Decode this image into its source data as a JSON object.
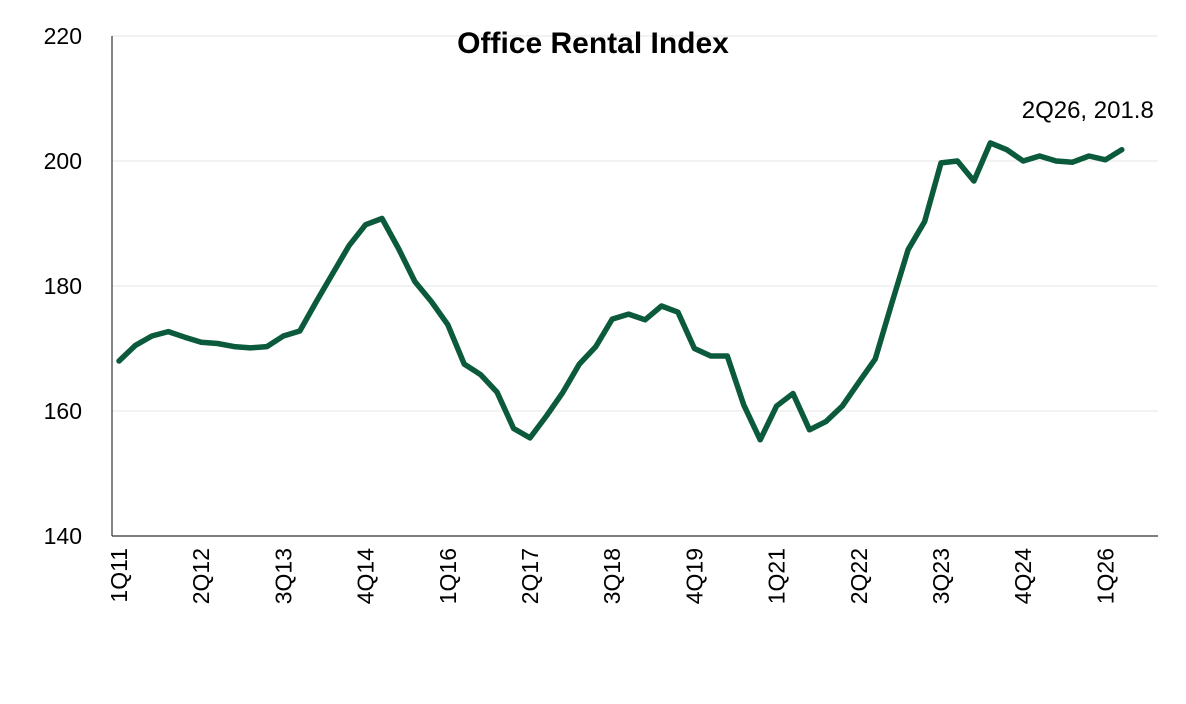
{
  "chart_data": {
    "type": "line",
    "title": "Office Rental Index",
    "xlabel": "",
    "ylabel": "",
    "ylim": [
      140,
      220
    ],
    "yticks": [
      140,
      160,
      180,
      200,
      220
    ],
    "grid": true,
    "legend": "none",
    "line_color": "#0b5a3b",
    "x": [
      "1Q11",
      "2Q11",
      "3Q11",
      "4Q11",
      "1Q12",
      "2Q12",
      "3Q12",
      "4Q12",
      "1Q13",
      "2Q13",
      "3Q13",
      "4Q13",
      "1Q14",
      "2Q14",
      "3Q14",
      "4Q14",
      "1Q15",
      "2Q15",
      "3Q15",
      "4Q15",
      "1Q16",
      "2Q16",
      "3Q16",
      "4Q16",
      "1Q17",
      "2Q17",
      "3Q17",
      "4Q17",
      "1Q18",
      "2Q18",
      "3Q18",
      "4Q18",
      "1Q19",
      "2Q19",
      "3Q19",
      "4Q19",
      "1Q20",
      "2Q20",
      "3Q20",
      "4Q20",
      "1Q21",
      "2Q21",
      "3Q21",
      "4Q21",
      "1Q22",
      "2Q22",
      "3Q22",
      "4Q22",
      "1Q23",
      "2Q23",
      "3Q23",
      "4Q23",
      "1Q24",
      "2Q24",
      "3Q24",
      "4Q24",
      "1Q25",
      "2Q25",
      "3Q25",
      "4Q25",
      "1Q26",
      "2Q26"
    ],
    "x_tick_labels": [
      "1Q11",
      "2Q12",
      "3Q13",
      "4Q14",
      "1Q16",
      "2Q17",
      "3Q18",
      "4Q19",
      "1Q21",
      "2Q22",
      "3Q23",
      "4Q24",
      "1Q26"
    ],
    "series": [
      {
        "values": [
          168.0,
          170.5,
          172.0,
          172.7,
          171.8,
          171.0,
          170.8,
          170.3,
          170.1,
          170.3,
          172.0,
          172.8,
          177.5,
          182.0,
          186.5,
          189.8,
          190.8,
          186.0,
          180.7,
          177.5,
          173.8,
          167.5,
          165.8,
          163.0,
          157.2,
          155.7,
          159.2,
          163.0,
          167.5,
          170.3,
          174.7,
          175.5,
          174.6,
          176.8,
          175.8,
          170.0,
          168.8,
          168.8,
          161.0,
          155.4,
          160.8,
          162.8,
          157.0,
          158.3,
          160.8,
          164.6,
          168.3,
          177.2,
          185.8,
          190.3,
          199.7,
          200.0,
          196.8,
          202.9,
          201.8,
          200.0,
          200.8,
          200.0,
          199.8,
          200.8,
          200.2,
          201.8
        ]
      }
    ],
    "annotations": [
      {
        "text": "2Q26, 201.8",
        "x": "2Q26",
        "y": 201.8
      }
    ]
  }
}
